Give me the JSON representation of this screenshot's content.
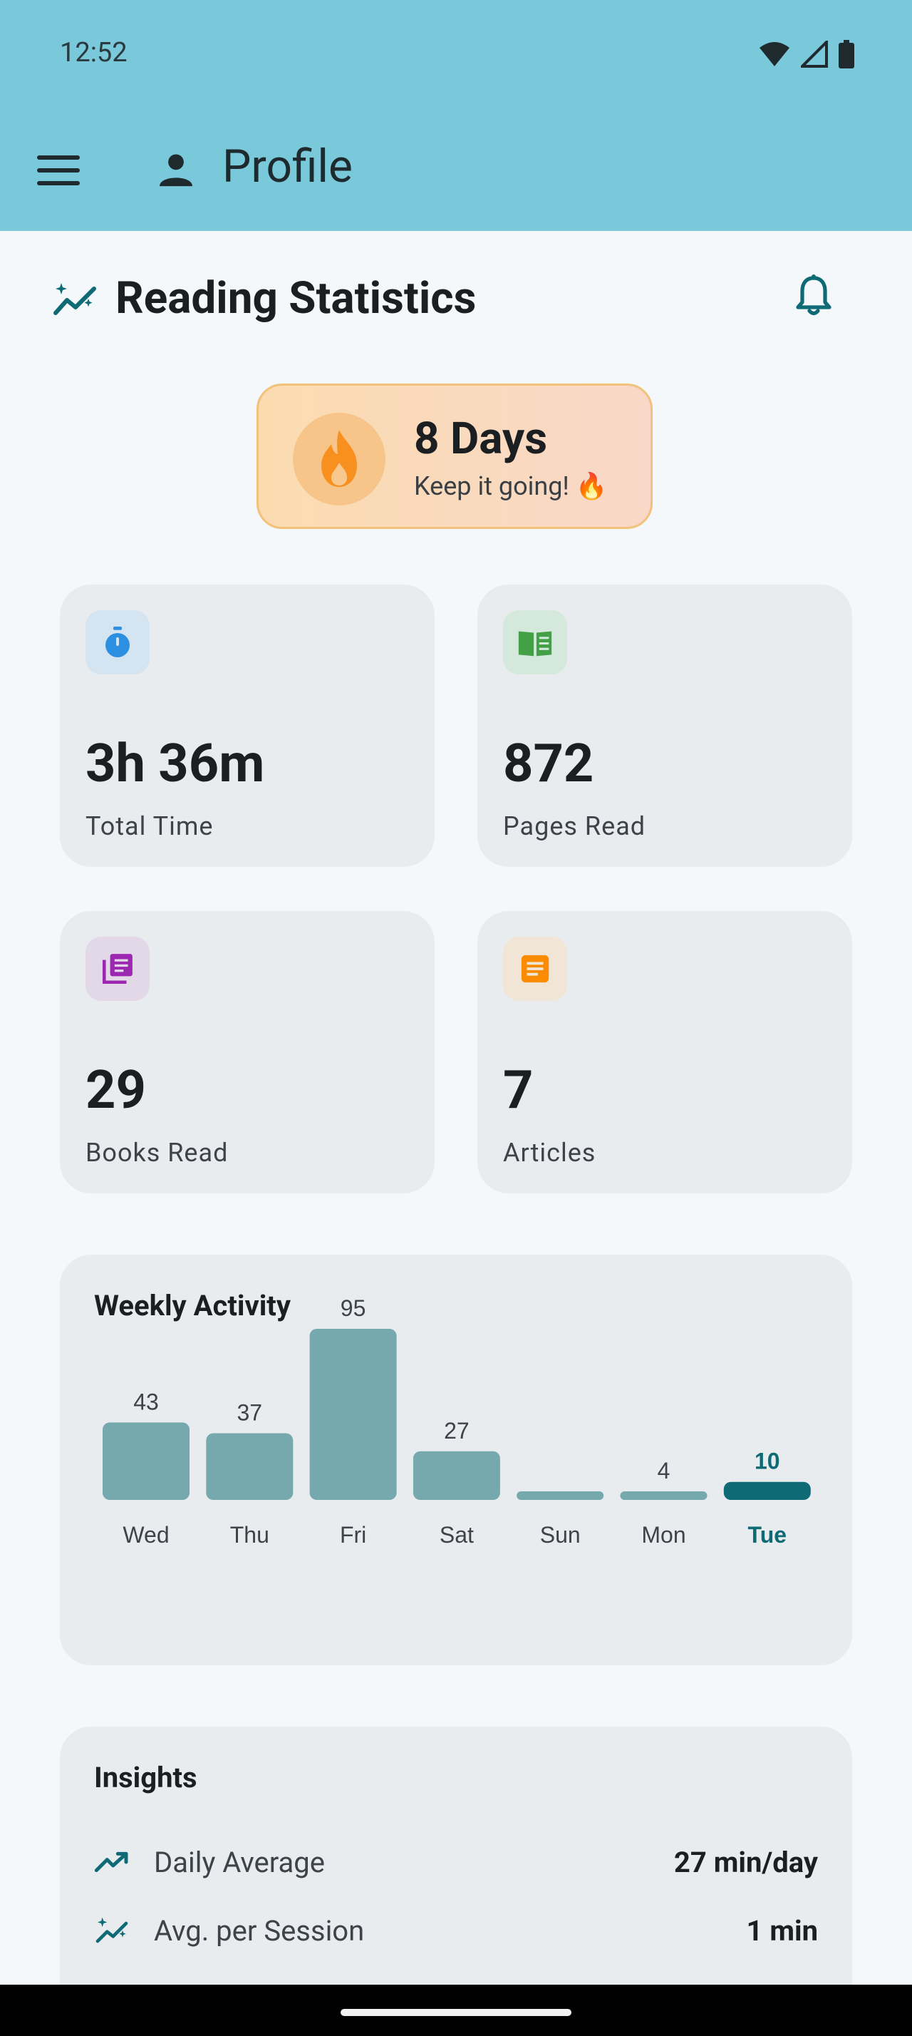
{
  "status": {
    "time": "12:52"
  },
  "header": {
    "title": "Profile"
  },
  "section": {
    "title": "Reading Statistics"
  },
  "streak": {
    "days": "8 Days",
    "message": "Keep it going! 🔥"
  },
  "stats": [
    {
      "value": "3h 36m",
      "label": "Total Time",
      "icon": "timer-icon",
      "color": "#2d8fe0",
      "bg": "#d4e4f1"
    },
    {
      "value": "872",
      "label": "Pages Read",
      "icon": "open-book-icon",
      "color": "#43a047",
      "bg": "#d5e8dc"
    },
    {
      "value": "29",
      "label": "Books Read",
      "icon": "library-books-icon",
      "color": "#9c27b0",
      "bg": "#e2d8e8"
    },
    {
      "value": "7",
      "label": "Articles",
      "icon": "article-icon",
      "color": "#fb8c00",
      "bg": "#f1e6d6"
    }
  ],
  "weekly": {
    "title": "Weekly Activity",
    "chart_data": {
      "type": "bar",
      "categories": [
        "Wed",
        "Thu",
        "Fri",
        "Sat",
        "Sun",
        "Mon",
        "Tue"
      ],
      "values": [
        43,
        37,
        95,
        27,
        0,
        4,
        10
      ],
      "value_labels": [
        "43",
        "37",
        "95",
        "27",
        "",
        "4",
        "10"
      ],
      "highlight_index": 6,
      "colors": {
        "bar": "#75a9ad",
        "highlight": "#0e6a75"
      }
    }
  },
  "insights": {
    "title": "Insights",
    "rows": [
      {
        "label": "Daily Average",
        "value": "27 min/day",
        "icon": "trending-up-icon"
      },
      {
        "label": "Avg. per Session",
        "value": "1 min",
        "icon": "sparkle-trend-icon"
      }
    ]
  },
  "colors": {
    "appbar": "#79c9da",
    "accent": "#0e6a75",
    "background": "#f4f8fb",
    "card": "#e8ecef"
  }
}
